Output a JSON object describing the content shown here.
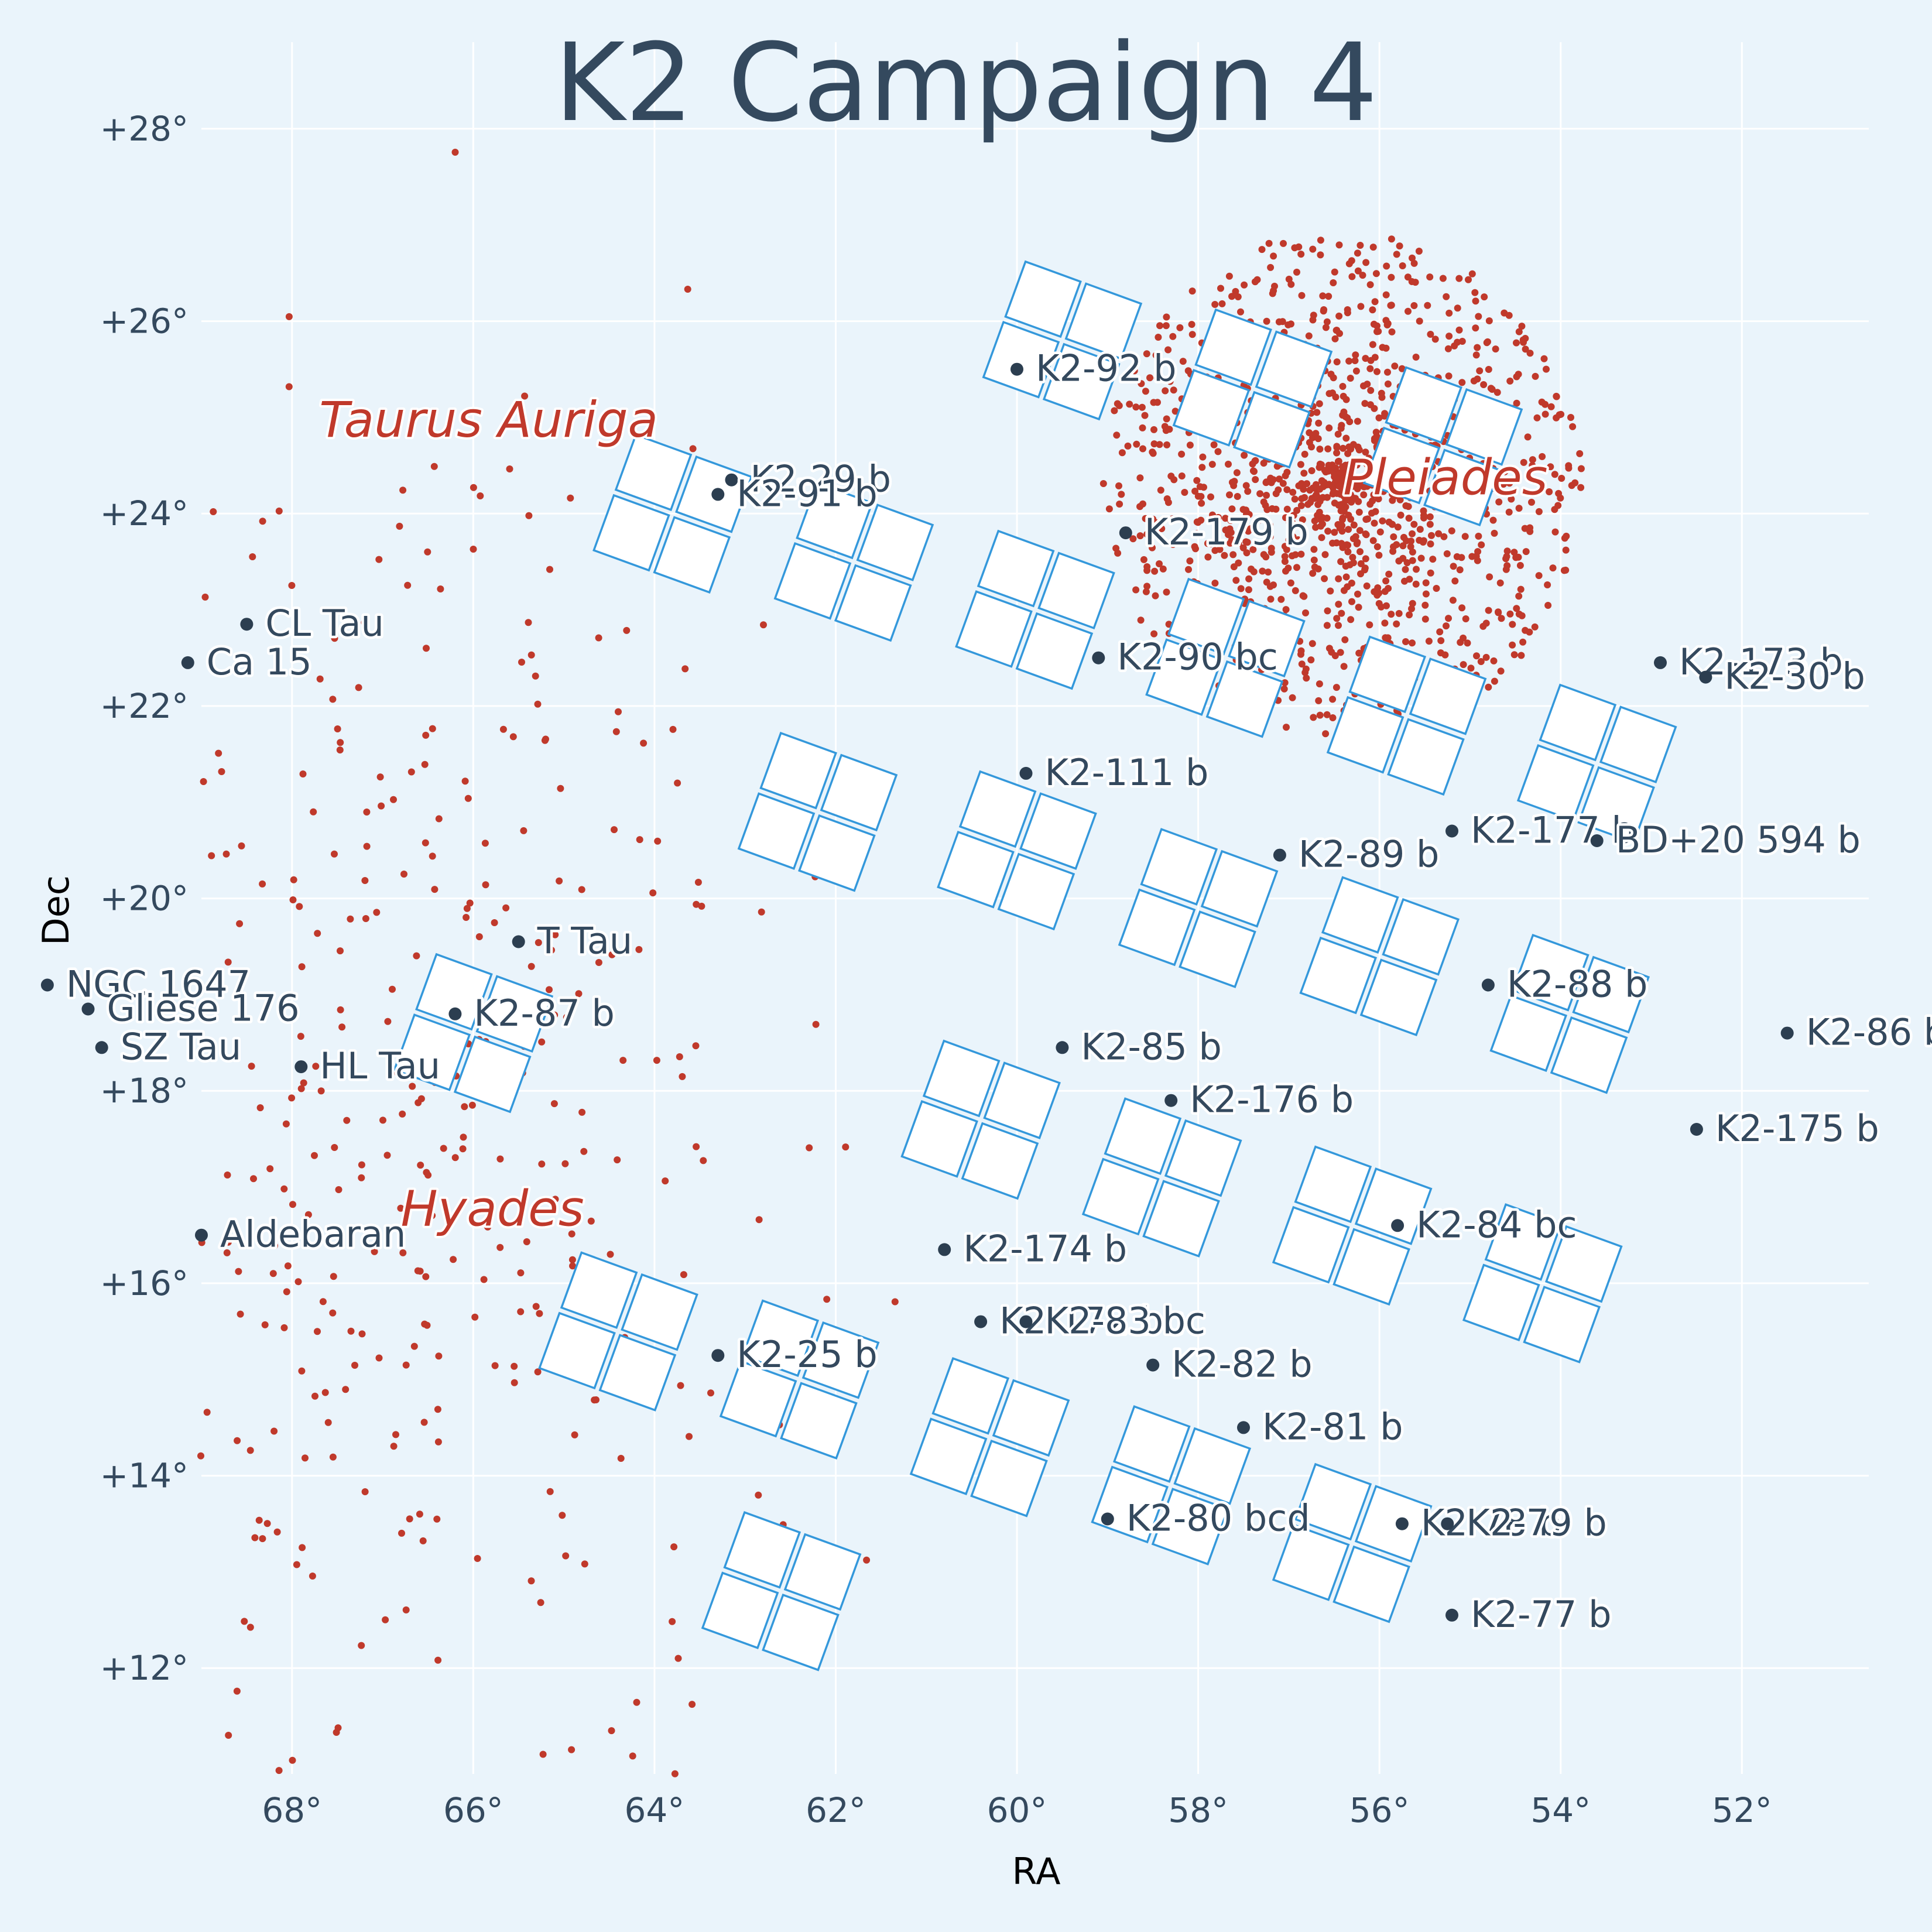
{
  "colors": {
    "background": "#eaf4fb",
    "star": "#c0392b",
    "planet": "#2c3e50",
    "ccd_edge": "#3498db",
    "text": "#34495e"
  },
  "chart_data": {
    "type": "scatter",
    "title": "K2 Campaign 4",
    "xlabel": "RA",
    "ylabel": "Dec",
    "xlim": [
      69,
      50.6
    ],
    "ylim": [
      10.9,
      28.9
    ],
    "x_ticks": [
      68,
      66,
      64,
      62,
      60,
      58,
      56,
      54,
      52
    ],
    "x_tick_labels": [
      "68°",
      "66°",
      "64°",
      "62°",
      "60°",
      "58°",
      "56°",
      "54°",
      "52°"
    ],
    "y_ticks": [
      28,
      26,
      24,
      22,
      20,
      18,
      16,
      14,
      12
    ],
    "y_tick_labels": [
      "+28°",
      "+26°",
      "+24°",
      "+22°",
      "+20°",
      "+18°",
      "+16°",
      "+14°",
      "+12°"
    ],
    "grid": true,
    "field_of_view": {
      "ccd_module_centers": [
        [
          59.5,
          25.8
        ],
        [
          57.4,
          25.3
        ],
        [
          55.3,
          24.7
        ],
        [
          63.8,
          24.0
        ],
        [
          61.8,
          23.5
        ],
        [
          59.8,
          23.0
        ],
        [
          57.7,
          22.5
        ],
        [
          55.7,
          21.9
        ],
        [
          53.6,
          21.4
        ],
        [
          62.2,
          20.9
        ],
        [
          60.0,
          20.5
        ],
        [
          58.0,
          19.9
        ],
        [
          56.0,
          19.4
        ],
        [
          53.9,
          18.8
        ],
        [
          66.0,
          18.6
        ],
        [
          60.4,
          17.7
        ],
        [
          58.4,
          17.1
        ],
        [
          56.3,
          16.6
        ],
        [
          54.2,
          16.0
        ],
        [
          64.4,
          15.5
        ],
        [
          62.4,
          15.0
        ],
        [
          60.3,
          14.4
        ],
        [
          58.3,
          13.9
        ],
        [
          56.3,
          13.3
        ],
        [
          62.6,
          12.8
        ]
      ],
      "tilt_deg": 20
    },
    "region_labels": [
      {
        "name": "Taurus Auriga",
        "ra": 67.7,
        "dec": 24.8
      },
      {
        "name": "Pleiades",
        "ra": 56.4,
        "dec": 24.2
      },
      {
        "name": "Hyades",
        "ra": 66.8,
        "dec": 16.6
      }
    ],
    "planets": [
      {
        "name": "K2-92 b",
        "ra": 60.0,
        "dec": 25.5
      },
      {
        "name": "K2-29 b",
        "ra": 63.15,
        "dec": 24.35
      },
      {
        "name": "K2-91 b",
        "ra": 63.3,
        "dec": 24.2
      },
      {
        "name": "K2-179 b",
        "ra": 58.8,
        "dec": 23.8
      },
      {
        "name": "CL Tau",
        "ra": 68.5,
        "dec": 22.85
      },
      {
        "name": "Ca 15",
        "ra": 69.15,
        "dec": 22.45
      },
      {
        "name": "K2-90 bc",
        "ra": 59.1,
        "dec": 22.5
      },
      {
        "name": "K2-173 b",
        "ra": 52.9,
        "dec": 22.45
      },
      {
        "name": "K2-30 b",
        "ra": 52.4,
        "dec": 22.3
      },
      {
        "name": "K2-111 b",
        "ra": 59.9,
        "dec": 21.3
      },
      {
        "name": "K2-177 b",
        "ra": 55.2,
        "dec": 20.7
      },
      {
        "name": "BD+20 594 b",
        "ra": 53.6,
        "dec": 20.6
      },
      {
        "name": "K2-89 b",
        "ra": 57.1,
        "dec": 20.45
      },
      {
        "name": "T Tau",
        "ra": 65.5,
        "dec": 19.55
      },
      {
        "name": "NGC 1647",
        "ra": 70.7,
        "dec": 19.1
      },
      {
        "name": "Gliese 176",
        "ra": 70.25,
        "dec": 18.85
      },
      {
        "name": "K2-88 b",
        "ra": 54.8,
        "dec": 19.1
      },
      {
        "name": "K2-87 b",
        "ra": 66.2,
        "dec": 18.8
      },
      {
        "name": "K2-86 b",
        "ra": 51.5,
        "dec": 18.6
      },
      {
        "name": "SZ Tau",
        "ra": 70.1,
        "dec": 18.45
      },
      {
        "name": "K2-85 b",
        "ra": 59.5,
        "dec": 18.45
      },
      {
        "name": "HL Tau",
        "ra": 67.9,
        "dec": 18.25
      },
      {
        "name": "K2-176 b",
        "ra": 58.3,
        "dec": 17.9
      },
      {
        "name": "K2-175 b",
        "ra": 52.5,
        "dec": 17.6
      },
      {
        "name": "Aldebaran",
        "ra": 69.0,
        "dec": 16.5
      },
      {
        "name": "K2-84 bc",
        "ra": 55.8,
        "dec": 16.6
      },
      {
        "name": "K2-174 b",
        "ra": 60.8,
        "dec": 16.35
      },
      {
        "name": "K2-172 bc",
        "ra": 60.4,
        "dec": 15.6
      },
      {
        "name": "K2-83 bc",
        "ra": 59.9,
        "dec": 15.6
      },
      {
        "name": "K2-25 b",
        "ra": 63.3,
        "dec": 15.25
      },
      {
        "name": "K2-82 b",
        "ra": 58.5,
        "dec": 15.15
      },
      {
        "name": "K2-81 b",
        "ra": 57.5,
        "dec": 14.5
      },
      {
        "name": "K2-80 bcd",
        "ra": 59.0,
        "dec": 13.55
      },
      {
        "name": "K2-78 b",
        "ra": 55.75,
        "dec": 13.5
      },
      {
        "name": "K2-79 b",
        "ra": 55.25,
        "dec": 13.5
      },
      {
        "name": "K2-77 b",
        "ra": 55.2,
        "dec": 12.55
      }
    ],
    "star_populations": [
      {
        "name": "Pleiades",
        "ra": 56.4,
        "dec": 24.3,
        "radius_deg": 2.65,
        "count": 1250
      },
      {
        "name": "Hyades",
        "ra": 66.8,
        "dec": 17.7,
        "spread_deg": 2.3,
        "count": 430
      }
    ]
  }
}
